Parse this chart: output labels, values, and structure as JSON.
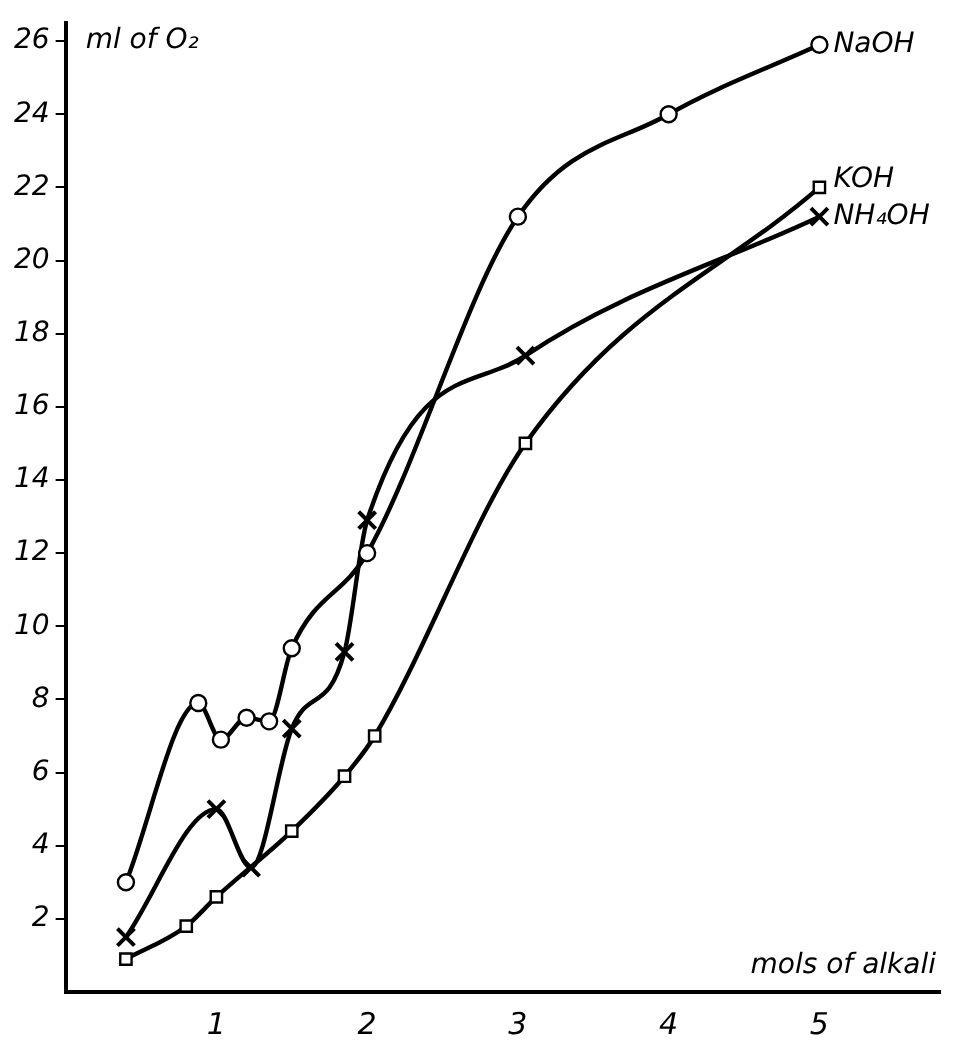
{
  "chart_data": {
    "type": "line",
    "xlabel": "mols of alkali",
    "ylabel": "ml of O₂",
    "xlim": [
      0,
      5.8
    ],
    "ylim": [
      0,
      26.5
    ],
    "xticks": [
      1,
      2,
      3,
      4,
      5
    ],
    "yticks": [
      2,
      4,
      6,
      8,
      10,
      12,
      14,
      16,
      18,
      20,
      22,
      24,
      26
    ],
    "grid": false,
    "legend": false,
    "line_style": "solid",
    "series": [
      {
        "name": "NaOH",
        "color": "#000000",
        "marker": "circle",
        "x": [
          0.4,
          0.88,
          1.03,
          1.2,
          1.35,
          1.5,
          2.0,
          3.0,
          4.0,
          5.0
        ],
        "values": [
          3.0,
          7.9,
          6.9,
          7.5,
          7.4,
          9.4,
          12.0,
          21.2,
          24.0,
          25.9
        ]
      },
      {
        "name": "KOH",
        "color": "#000000",
        "marker": "square",
        "x": [
          0.4,
          0.8,
          1.0,
          1.5,
          1.85,
          2.05,
          3.05,
          5.0
        ],
        "values": [
          0.9,
          1.8,
          2.6,
          4.4,
          5.9,
          7.0,
          15.0,
          22.0
        ]
      },
      {
        "name": "NH₄OH",
        "color": "#000000",
        "marker": "cross",
        "x": [
          0.4,
          1.0,
          1.23,
          1.5,
          1.85,
          2.0,
          3.05,
          5.0
        ],
        "values": [
          1.5,
          5.0,
          3.4,
          7.2,
          9.3,
          12.9,
          17.4,
          21.2
        ]
      }
    ]
  }
}
